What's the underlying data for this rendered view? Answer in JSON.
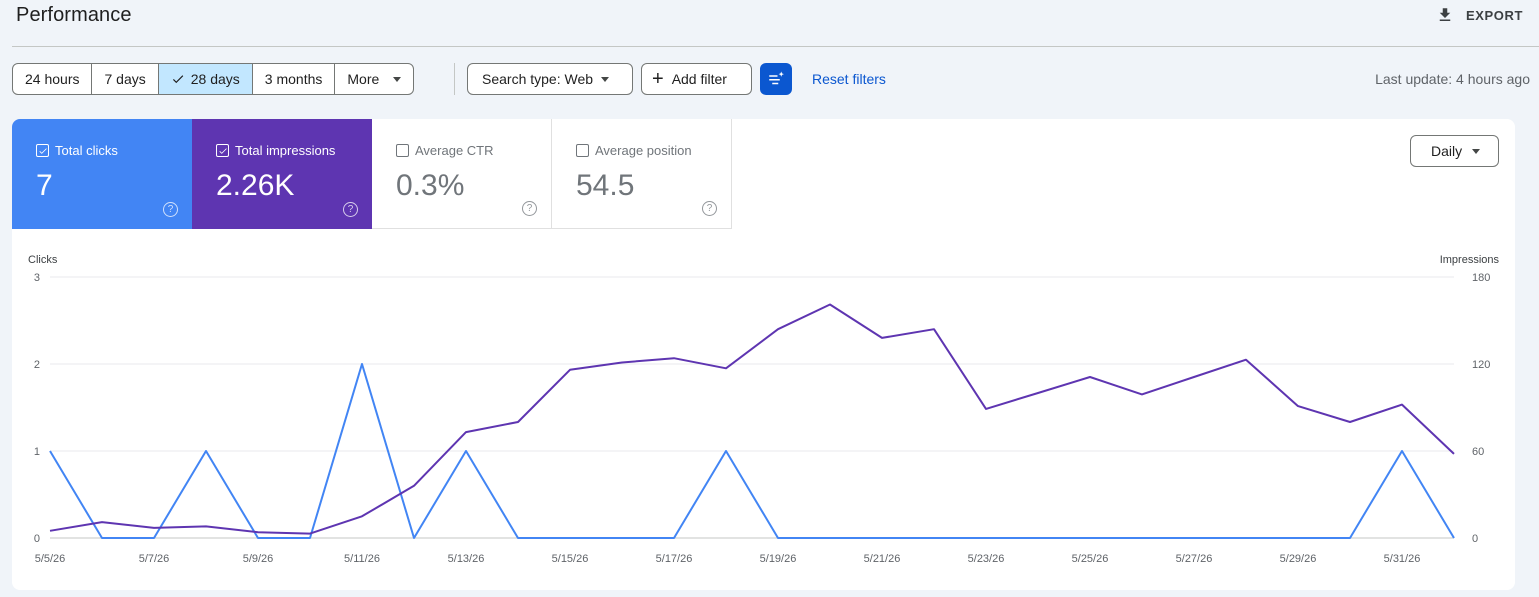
{
  "header": {
    "title": "Performance",
    "export_label": "EXPORT"
  },
  "toolbar": {
    "date_ranges": [
      {
        "label": "24 hours",
        "active": false
      },
      {
        "label": "7 days",
        "active": false
      },
      {
        "label": "28 days",
        "active": true
      },
      {
        "label": "3 months",
        "active": false
      }
    ],
    "more_label": "More",
    "search_type_label": "Search type: Web",
    "add_filter_label": "Add filter",
    "reset_label": "Reset filters",
    "last_update": "Last update: 4 hours ago"
  },
  "metrics": {
    "clicks": {
      "label": "Total clicks",
      "value": "7",
      "checked": true,
      "color": "#4285f4"
    },
    "impressions": {
      "label": "Total impressions",
      "value": "2.26K",
      "checked": true,
      "color": "#5e35b1"
    },
    "ctr": {
      "label": "Average CTR",
      "value": "0.3%",
      "checked": false
    },
    "position": {
      "label": "Average position",
      "value": "54.5",
      "checked": false
    }
  },
  "granularity": {
    "label": "Daily"
  },
  "chart_data": {
    "type": "line",
    "x": [
      "5/5/26",
      "5/6/26",
      "5/7/26",
      "5/8/26",
      "5/9/26",
      "5/10/26",
      "5/11/26",
      "5/12/26",
      "5/13/26",
      "5/14/26",
      "5/15/26",
      "5/16/26",
      "5/17/26",
      "5/18/26",
      "5/19/26",
      "5/20/26",
      "5/21/26",
      "5/22/26",
      "5/23/26",
      "5/24/26",
      "5/25/26",
      "5/26/26",
      "5/27/26",
      "5/28/26",
      "5/29/26",
      "5/30/26",
      "5/31/26",
      "6/1/26"
    ],
    "x_tick_labels": [
      "5/5/26",
      "5/7/26",
      "5/9/26",
      "5/11/26",
      "5/13/26",
      "5/15/26",
      "5/17/26",
      "5/19/26",
      "5/21/26",
      "5/23/26",
      "5/25/26",
      "5/27/26",
      "5/29/26",
      "5/31/26"
    ],
    "ylabel_left": "Clicks",
    "ylabel_right": "Impressions",
    "ylim_left": [
      0,
      3
    ],
    "ylim_right": [
      0,
      180
    ],
    "yticks_left": [
      "0",
      "1",
      "2",
      "3"
    ],
    "yticks_right": [
      "0",
      "60",
      "120",
      "180"
    ],
    "grid": true,
    "series": [
      {
        "name": "Clicks",
        "axis": "left",
        "color": "#4285f4",
        "values": [
          1,
          0,
          0,
          1,
          0,
          0,
          2,
          0,
          1,
          0,
          0,
          0,
          0,
          1,
          0,
          0,
          0,
          0,
          0,
          0,
          0,
          0,
          0,
          0,
          0,
          0,
          1,
          0
        ]
      },
      {
        "name": "Impressions",
        "axis": "right",
        "color": "#5e35b1",
        "values": [
          5,
          11,
          7,
          8,
          4,
          3,
          15,
          36,
          73,
          80,
          116,
          121,
          124,
          117,
          144,
          161,
          138,
          144,
          89,
          100,
          111,
          99,
          111,
          123,
          91,
          80,
          92,
          58
        ]
      }
    ]
  }
}
